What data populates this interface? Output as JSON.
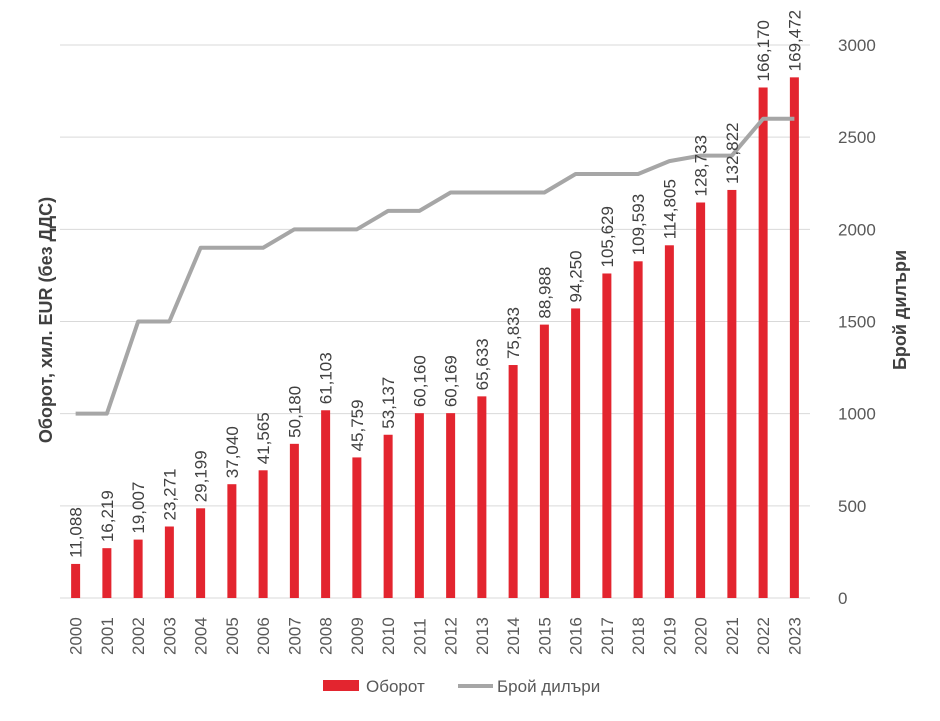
{
  "chart_data": {
    "type": "bar",
    "categories": [
      "2000",
      "2001",
      "2002",
      "2003",
      "2004",
      "2005",
      "2006",
      "2007",
      "2008",
      "2009",
      "2010",
      "2011",
      "2012",
      "2013",
      "2014",
      "2015",
      "2016",
      "2017",
      "2018",
      "2019",
      "2020",
      "2021",
      "2022",
      "2023"
    ],
    "series": [
      {
        "name": "Оборот",
        "type": "bar",
        "axis": "left",
        "color": "#e3252f",
        "values": [
          11088,
          16219,
          19007,
          23271,
          29199,
          37040,
          41565,
          50180,
          61103,
          45759,
          53137,
          60160,
          60169,
          65633,
          75833,
          88988,
          94250,
          105629,
          109593,
          114805,
          128733,
          132822,
          166170,
          169472
        ],
        "labels": [
          "11,088",
          "16,219",
          "19,007",
          "23,271",
          "29,199",
          "37,040",
          "41,565",
          "50,180",
          "61,103",
          "45,759",
          "53,137",
          "60,160",
          "60,169",
          "65,633",
          "75,833",
          "88,988",
          "94,250",
          "105,629",
          "109,593",
          "114,805",
          "128,733",
          "132,822",
          "166,170",
          "169,472"
        ]
      },
      {
        "name": "Брой дилъри",
        "type": "line",
        "axis": "right",
        "color": "#a6a6a6",
        "values": [
          1000,
          1000,
          1500,
          1500,
          1900,
          1900,
          1900,
          2000,
          2000,
          2000,
          2100,
          2100,
          2200,
          2200,
          2200,
          2200,
          2300,
          2300,
          2300,
          2370,
          2400,
          2400,
          2600,
          2600
        ]
      }
    ],
    "ylabel_left": "Оборот, хил. EUR (без ДДС)",
    "ylabel_right": "Брой дилъри",
    "ylim_left": [
      0,
      180000
    ],
    "ylim_right": [
      0,
      3000
    ],
    "yticks_right": [
      "0",
      "500",
      "1000",
      "1500",
      "2000",
      "2500",
      "3000"
    ],
    "grid": true,
    "legend_position": "bottom"
  }
}
